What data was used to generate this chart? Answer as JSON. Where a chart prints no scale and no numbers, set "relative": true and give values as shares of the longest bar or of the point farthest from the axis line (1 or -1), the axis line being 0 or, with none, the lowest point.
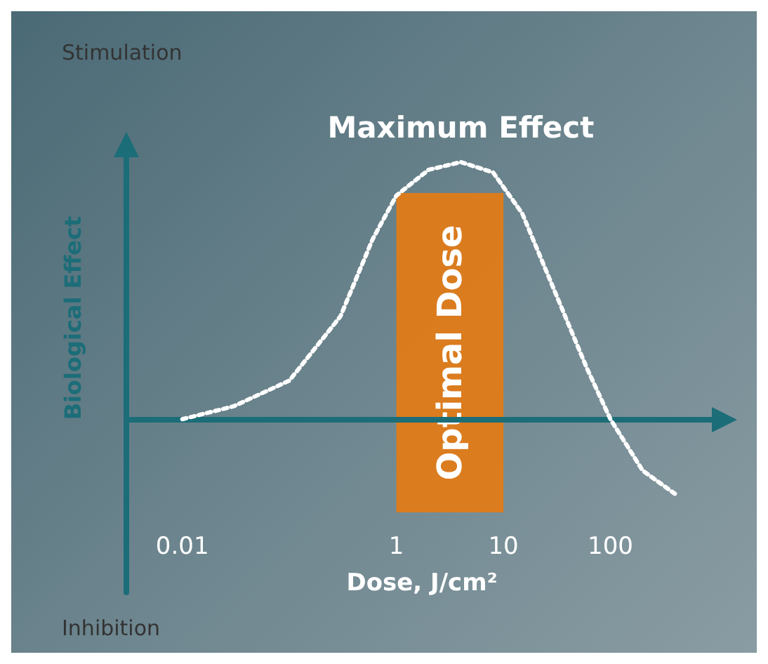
{
  "chart_data": {
    "type": "line",
    "relative": true,
    "log": "x",
    "xlabel": "Dose, J/cm²",
    "ylabel": "Biological Effect",
    "xlim": [
      0.003,
      1000
    ],
    "xticks": [
      0.01,
      1,
      10,
      100
    ],
    "grid": false,
    "marker": "none",
    "line_style": "dotted",
    "series": [
      {
        "color": "#ffffff",
        "x": [
          0.01,
          0.03,
          0.1,
          0.3,
          0.6,
          1,
          2,
          4,
          8,
          15,
          30,
          60,
          100,
          200,
          400
        ],
        "values": [
          0,
          0.05,
          0.15,
          0.4,
          0.7,
          0.87,
          0.97,
          1,
          0.96,
          0.8,
          0.5,
          0.2,
          0,
          -0.2,
          -0.29
        ]
      }
    ],
    "ref_lines": [
      {
        "axis": "y",
        "value": 0,
        "color": "#1b6d78"
      }
    ],
    "bands": [
      {
        "axis": "x",
        "from": 1,
        "to": 10,
        "label": "Optimal Dose",
        "color": "#e07b18"
      }
    ],
    "annotations": [
      {
        "text": "Maximum Effect",
        "x": 4,
        "y": 1
      },
      "Stimulation",
      "Inhibition"
    ]
  }
}
